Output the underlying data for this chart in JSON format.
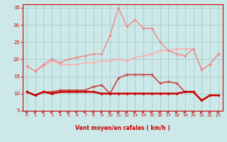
{
  "background_color": "#cce8e8",
  "grid_color": "#aacccc",
  "xlabel": "Vent moyen/en rafales ( km/h )",
  "ylim": [
    5,
    36
  ],
  "xlim": [
    -0.5,
    23.5
  ],
  "yticks": [
    5,
    10,
    15,
    20,
    25,
    30,
    35
  ],
  "xticks": [
    0,
    1,
    2,
    3,
    4,
    5,
    6,
    7,
    8,
    9,
    10,
    11,
    12,
    13,
    14,
    15,
    16,
    17,
    18,
    19,
    20,
    21,
    22,
    23
  ],
  "line1": {
    "y": [
      18.0,
      16.5,
      18.0,
      19.5,
      18.5,
      18.5,
      18.5,
      19.0,
      19.0,
      19.5,
      19.5,
      20.0,
      19.5,
      20.5,
      21.0,
      21.5,
      22.5,
      22.5,
      23.0,
      23.0,
      23.0,
      17.0,
      18.5,
      21.5
    ],
    "color": "#ffaaaa",
    "lw": 1.0,
    "marker": "D",
    "ms": 1.8
  },
  "line2": {
    "y": [
      18.0,
      16.5,
      18.5,
      20.0,
      19.0,
      20.0,
      20.5,
      21.0,
      21.5,
      21.5,
      27.0,
      35.0,
      29.5,
      31.5,
      29.0,
      29.0,
      25.0,
      22.5,
      21.5,
      21.0,
      23.0,
      17.0,
      18.5,
      21.5
    ],
    "color": "#ee8888",
    "lw": 1.0,
    "marker": "D",
    "ms": 1.8
  },
  "line3": {
    "y": [
      10.5,
      9.5,
      10.5,
      10.5,
      11.0,
      11.0,
      11.0,
      11.0,
      12.0,
      12.5,
      10.0,
      14.5,
      15.5,
      15.5,
      15.5,
      15.5,
      13.0,
      13.5,
      13.0,
      10.5,
      10.5,
      8.0,
      9.5,
      9.5
    ],
    "color": "#cc4444",
    "lw": 1.2,
    "marker": "D",
    "ms": 1.8
  },
  "line4": {
    "y": [
      10.5,
      9.5,
      10.5,
      10.0,
      10.5,
      10.5,
      10.5,
      10.5,
      10.5,
      10.0,
      10.0,
      10.0,
      10.0,
      10.0,
      10.0,
      10.0,
      10.0,
      10.0,
      10.0,
      10.5,
      10.5,
      8.0,
      9.5,
      9.5
    ],
    "color": "#cc0000",
    "lw": 1.8,
    "marker": "D",
    "ms": 1.8
  },
  "arrow_color": "#cc0000",
  "xlabel_color": "#cc0000",
  "tick_color": "#cc0000",
  "axes_color": "#cc0000",
  "spine_color": "#cc0000"
}
